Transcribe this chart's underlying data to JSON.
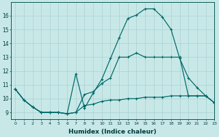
{
  "xlabel": "Humidex (Indice chaleur)",
  "ylabel": "",
  "background_color": "#c8e8e8",
  "grid_color": "#a8d0d0",
  "line_color": "#006868",
  "xlim": [
    -0.5,
    23
  ],
  "ylim": [
    8.5,
    17.0
  ],
  "xticks": [
    0,
    1,
    2,
    3,
    4,
    5,
    6,
    7,
    8,
    9,
    10,
    11,
    12,
    13,
    14,
    15,
    16,
    17,
    18,
    19,
    20,
    21,
    22,
    23
  ],
  "yticks": [
    9,
    10,
    11,
    12,
    13,
    14,
    15,
    16
  ],
  "series": [
    [
      10.7,
      9.9,
      9.4,
      9.0,
      9.0,
      9.0,
      8.9,
      9.0,
      9.5,
      9.6,
      9.8,
      9.9,
      9.9,
      10.0,
      10.0,
      10.1,
      10.1,
      10.1,
      10.2,
      10.2,
      10.2,
      10.2,
      10.2,
      9.7
    ],
    [
      10.7,
      9.9,
      9.4,
      9.0,
      9.0,
      9.0,
      8.9,
      9.0,
      10.3,
      10.5,
      11.1,
      11.5,
      13.0,
      13.0,
      13.3,
      13.0,
      13.0,
      13.0,
      13.0,
      13.0,
      10.2,
      10.2,
      10.2,
      9.7
    ],
    [
      10.7,
      9.9,
      9.4,
      9.0,
      9.0,
      9.0,
      8.9,
      11.8,
      9.3,
      10.4,
      11.4,
      12.9,
      14.4,
      15.8,
      16.05,
      16.5,
      16.5,
      15.9,
      15.0,
      12.9,
      11.5,
      10.8,
      10.2,
      9.7
    ]
  ]
}
